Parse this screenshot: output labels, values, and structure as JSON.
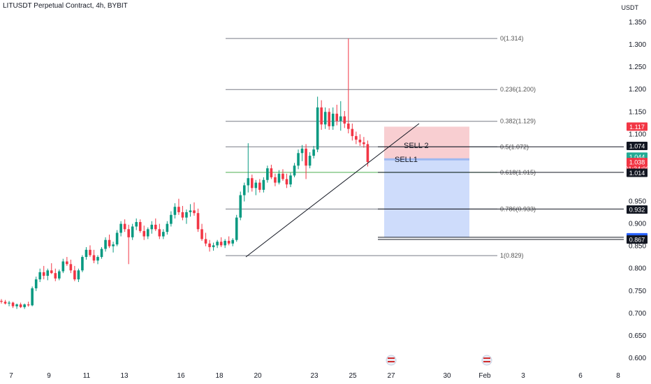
{
  "header": {
    "symbol_title": "LITUSDT Perpetual Contract, 4h, BYBIT",
    "currency": "USDT"
  },
  "chart_data": {
    "type": "candlestick",
    "price_axis": {
      "ylim": [
        0.58,
        1.38
      ],
      "ticks": [
        "1.350",
        "1.300",
        "1.250",
        "1.200",
        "1.150",
        "1.100",
        "0.950",
        "0.900",
        "0.850",
        "0.800",
        "0.750",
        "0.700",
        "0.650",
        "0.600"
      ]
    },
    "time_axis": {
      "ticks": [
        "7",
        "9",
        "11",
        "13",
        "16",
        "18",
        "20",
        "23",
        "25",
        "27",
        "30",
        "Feb",
        "3",
        "6",
        "8"
      ]
    },
    "candles": [
      {
        "o": 0.728,
        "h": 0.732,
        "l": 0.722,
        "c": 0.726
      },
      {
        "o": 0.726,
        "h": 0.73,
        "l": 0.72,
        "c": 0.722
      },
      {
        "o": 0.722,
        "h": 0.728,
        "l": 0.716,
        "c": 0.724
      },
      {
        "o": 0.724,
        "h": 0.726,
        "l": 0.712,
        "c": 0.716
      },
      {
        "o": 0.716,
        "h": 0.722,
        "l": 0.71,
        "c": 0.72
      },
      {
        "o": 0.72,
        "h": 0.724,
        "l": 0.712,
        "c": 0.714
      },
      {
        "o": 0.714,
        "h": 0.722,
        "l": 0.71,
        "c": 0.72
      },
      {
        "o": 0.72,
        "h": 0.726,
        "l": 0.715,
        "c": 0.718
      },
      {
        "o": 0.718,
        "h": 0.76,
        "l": 0.716,
        "c": 0.756
      },
      {
        "o": 0.756,
        "h": 0.782,
        "l": 0.75,
        "c": 0.776
      },
      {
        "o": 0.776,
        "h": 0.8,
        "l": 0.77,
        "c": 0.792
      },
      {
        "o": 0.792,
        "h": 0.806,
        "l": 0.776,
        "c": 0.784
      },
      {
        "o": 0.784,
        "h": 0.8,
        "l": 0.774,
        "c": 0.796
      },
      {
        "o": 0.796,
        "h": 0.812,
        "l": 0.788,
        "c": 0.79
      },
      {
        "o": 0.79,
        "h": 0.8,
        "l": 0.772,
        "c": 0.778
      },
      {
        "o": 0.778,
        "h": 0.798,
        "l": 0.774,
        "c": 0.794
      },
      {
        "o": 0.794,
        "h": 0.822,
        "l": 0.79,
        "c": 0.816
      },
      {
        "o": 0.816,
        "h": 0.826,
        "l": 0.806,
        "c": 0.81
      },
      {
        "o": 0.81,
        "h": 0.82,
        "l": 0.79,
        "c": 0.796
      },
      {
        "o": 0.796,
        "h": 0.806,
        "l": 0.772,
        "c": 0.776
      },
      {
        "o": 0.776,
        "h": 0.8,
        "l": 0.77,
        "c": 0.796
      },
      {
        "o": 0.796,
        "h": 0.83,
        "l": 0.792,
        "c": 0.826
      },
      {
        "o": 0.826,
        "h": 0.848,
        "l": 0.82,
        "c": 0.842
      },
      {
        "o": 0.842,
        "h": 0.852,
        "l": 0.826,
        "c": 0.83
      },
      {
        "o": 0.83,
        "h": 0.842,
        "l": 0.812,
        "c": 0.818
      },
      {
        "o": 0.818,
        "h": 0.83,
        "l": 0.81,
        "c": 0.826
      },
      {
        "o": 0.826,
        "h": 0.848,
        "l": 0.822,
        "c": 0.844
      },
      {
        "o": 0.844,
        "h": 0.87,
        "l": 0.838,
        "c": 0.864
      },
      {
        "o": 0.864,
        "h": 0.876,
        "l": 0.846,
        "c": 0.85
      },
      {
        "o": 0.85,
        "h": 0.86,
        "l": 0.836,
        "c": 0.854
      },
      {
        "o": 0.854,
        "h": 0.886,
        "l": 0.85,
        "c": 0.88
      },
      {
        "o": 0.88,
        "h": 0.906,
        "l": 0.872,
        "c": 0.9
      },
      {
        "o": 0.9,
        "h": 0.91,
        "l": 0.882,
        "c": 0.888
      },
      {
        "o": 0.888,
        "h": 0.898,
        "l": 0.81,
        "c": 0.87
      },
      {
        "o": 0.87,
        "h": 0.9,
        "l": 0.864,
        "c": 0.894
      },
      {
        "o": 0.894,
        "h": 0.912,
        "l": 0.886,
        "c": 0.904
      },
      {
        "o": 0.904,
        "h": 0.91,
        "l": 0.88,
        "c": 0.884
      },
      {
        "o": 0.884,
        "h": 0.896,
        "l": 0.864,
        "c": 0.872
      },
      {
        "o": 0.872,
        "h": 0.892,
        "l": 0.866,
        "c": 0.888
      },
      {
        "o": 0.888,
        "h": 0.906,
        "l": 0.878,
        "c": 0.898
      },
      {
        "o": 0.898,
        "h": 0.912,
        "l": 0.884,
        "c": 0.888
      },
      {
        "o": 0.888,
        "h": 0.9,
        "l": 0.866,
        "c": 0.872
      },
      {
        "o": 0.872,
        "h": 0.888,
        "l": 0.866,
        "c": 0.882
      },
      {
        "o": 0.882,
        "h": 0.906,
        "l": 0.876,
        "c": 0.9
      },
      {
        "o": 0.9,
        "h": 0.928,
        "l": 0.894,
        "c": 0.92
      },
      {
        "o": 0.92,
        "h": 0.946,
        "l": 0.912,
        "c": 0.938
      },
      {
        "o": 0.938,
        "h": 0.956,
        "l": 0.92,
        "c": 0.926
      },
      {
        "o": 0.926,
        "h": 0.94,
        "l": 0.908,
        "c": 0.914
      },
      {
        "o": 0.914,
        "h": 0.932,
        "l": 0.9,
        "c": 0.926
      },
      {
        "o": 0.926,
        "h": 0.944,
        "l": 0.916,
        "c": 0.93
      },
      {
        "o": 0.93,
        "h": 0.948,
        "l": 0.918,
        "c": 0.924
      },
      {
        "o": 0.924,
        "h": 0.934,
        "l": 0.882,
        "c": 0.888
      },
      {
        "o": 0.888,
        "h": 0.9,
        "l": 0.862,
        "c": 0.866
      },
      {
        "o": 0.866,
        "h": 0.88,
        "l": 0.85,
        "c": 0.856
      },
      {
        "o": 0.856,
        "h": 0.864,
        "l": 0.838,
        "c": 0.848
      },
      {
        "o": 0.848,
        "h": 0.858,
        "l": 0.84,
        "c": 0.852
      },
      {
        "o": 0.852,
        "h": 0.864,
        "l": 0.846,
        "c": 0.86
      },
      {
        "o": 0.86,
        "h": 0.87,
        "l": 0.848,
        "c": 0.852
      },
      {
        "o": 0.852,
        "h": 0.866,
        "l": 0.846,
        "c": 0.862
      },
      {
        "o": 0.862,
        "h": 0.872,
        "l": 0.852,
        "c": 0.856
      },
      {
        "o": 0.856,
        "h": 0.868,
        "l": 0.85,
        "c": 0.864
      },
      {
        "o": 0.864,
        "h": 0.92,
        "l": 0.86,
        "c": 0.914
      },
      {
        "o": 0.914,
        "h": 0.972,
        "l": 0.908,
        "c": 0.964
      },
      {
        "o": 0.964,
        "h": 0.992,
        "l": 0.95,
        "c": 0.986
      },
      {
        "o": 0.986,
        "h": 1.08,
        "l": 0.97,
        "c": 1.002
      },
      {
        "o": 1.002,
        "h": 1.01,
        "l": 0.972,
        "c": 0.98
      },
      {
        "o": 0.98,
        "h": 0.998,
        "l": 0.964,
        "c": 0.992
      },
      {
        "o": 0.992,
        "h": 1.0,
        "l": 0.97,
        "c": 0.976
      },
      {
        "o": 0.976,
        "h": 1.004,
        "l": 0.97,
        "c": 0.998
      },
      {
        "o": 0.998,
        "h": 1.03,
        "l": 0.992,
        "c": 1.024
      },
      {
        "o": 1.024,
        "h": 1.032,
        "l": 1.0,
        "c": 1.004
      },
      {
        "o": 1.004,
        "h": 1.012,
        "l": 0.984,
        "c": 0.992
      },
      {
        "o": 0.992,
        "h": 1.02,
        "l": 0.988,
        "c": 1.012
      },
      {
        "o": 1.012,
        "h": 1.022,
        "l": 0.996,
        "c": 1.0
      },
      {
        "o": 1.0,
        "h": 1.012,
        "l": 0.98,
        "c": 0.988
      },
      {
        "o": 0.988,
        "h": 1.014,
        "l": 0.982,
        "c": 1.008
      },
      {
        "o": 1.008,
        "h": 1.036,
        "l": 1.004,
        "c": 1.03
      },
      {
        "o": 1.03,
        "h": 1.066,
        "l": 1.022,
        "c": 1.058
      },
      {
        "o": 1.058,
        "h": 1.076,
        "l": 1.04,
        "c": 1.068
      },
      {
        "o": 1.068,
        "h": 1.078,
        "l": 1.0,
        "c": 1.03
      },
      {
        "o": 1.03,
        "h": 1.06,
        "l": 1.024,
        "c": 1.052
      },
      {
        "o": 1.052,
        "h": 1.074,
        "l": 1.046,
        "c": 1.066
      },
      {
        "o": 1.066,
        "h": 1.184,
        "l": 1.06,
        "c": 1.16
      },
      {
        "o": 1.16,
        "h": 1.176,
        "l": 1.11,
        "c": 1.122
      },
      {
        "o": 1.122,
        "h": 1.16,
        "l": 1.112,
        "c": 1.15
      },
      {
        "o": 1.15,
        "h": 1.158,
        "l": 1.11,
        "c": 1.118
      },
      {
        "o": 1.118,
        "h": 1.16,
        "l": 1.11,
        "c": 1.146
      },
      {
        "o": 1.146,
        "h": 1.166,
        "l": 1.12,
        "c": 1.13
      },
      {
        "o": 1.13,
        "h": 1.174,
        "l": 1.108,
        "c": 1.14
      },
      {
        "o": 1.14,
        "h": 1.152,
        "l": 1.114,
        "c": 1.124
      },
      {
        "o": 1.124,
        "h": 1.314,
        "l": 1.102,
        "c": 1.112
      },
      {
        "o": 1.112,
        "h": 1.124,
        "l": 1.086,
        "c": 1.096
      },
      {
        "o": 1.096,
        "h": 1.106,
        "l": 1.078,
        "c": 1.088
      },
      {
        "o": 1.088,
        "h": 1.1,
        "l": 1.074,
        "c": 1.082
      },
      {
        "o": 1.082,
        "h": 1.094,
        "l": 1.07,
        "c": 1.078
      },
      {
        "o": 1.078,
        "h": 1.086,
        "l": 1.028,
        "c": 1.038
      }
    ],
    "fib_levels": [
      {
        "label": "0(1.314)",
        "price": 1.314
      },
      {
        "label": "0.236(1.200)",
        "price": 1.2
      },
      {
        "label": "0.382(1.129)",
        "price": 1.129
      },
      {
        "label": "0.5(1.072)",
        "price": 1.072
      },
      {
        "label": "0.618(1.015)",
        "price": 1.015
      },
      {
        "label": "0.786(0.933)",
        "price": 0.933
      },
      {
        "label": "1(0.829)",
        "price": 0.829
      }
    ],
    "annotations": {
      "sell_2_label": "SELL 2",
      "sell_1_label": "SELL1"
    },
    "price_badges": [
      {
        "label": "1.117",
        "bg": "#f23645",
        "fg": "#ffffff",
        "price": 1.117
      },
      {
        "label": "1.074",
        "bg": "#131722",
        "fg": "#ffffff",
        "price": 1.074
      },
      {
        "label": "1.044",
        "bg": "#22ab94",
        "fg": "#ffffff",
        "price": 1.05
      },
      {
        "label": "1.038",
        "bg": "#f23645",
        "fg": "#ffffff",
        "price": 1.038
      },
      {
        "label": "01:34:00",
        "bg": "#f23645",
        "fg": "#ffffff",
        "price": 1.023
      },
      {
        "label": "1.014",
        "bg": "#131722",
        "fg": "#ffffff",
        "price": 1.014
      },
      {
        "label": "0.932",
        "bg": "#131722",
        "fg": "#ffffff",
        "price": 0.932
      },
      {
        "label": "0.870",
        "bg": "#2962ff",
        "fg": "#ffffff",
        "price": 0.87
      },
      {
        "label": "0.867",
        "bg": "#131722",
        "fg": "#ffffff",
        "price": 0.865
      }
    ],
    "colors": {
      "up": "#089981",
      "down": "#f23645",
      "stop_zone": "#f7c5c9",
      "target_zone": "#c9d8fb",
      "fib_line": "#787b86",
      "fib_green": "#4caf50"
    }
  }
}
